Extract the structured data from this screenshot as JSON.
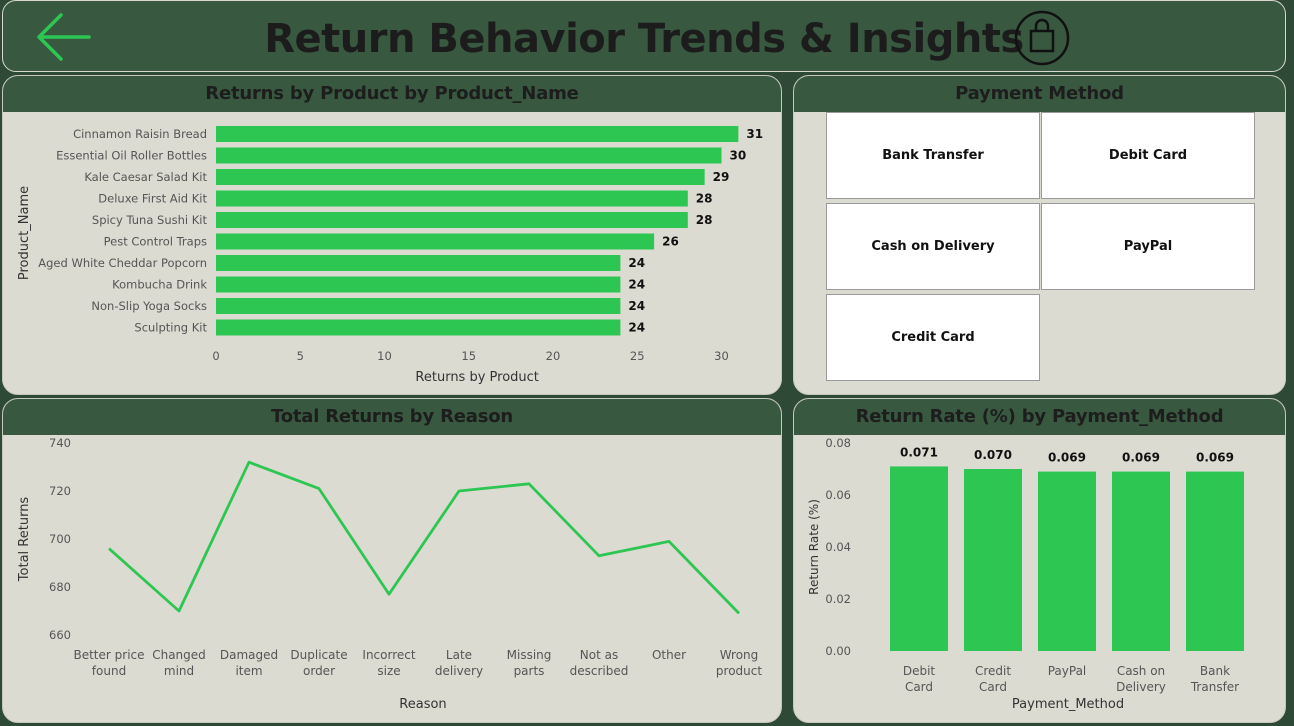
{
  "header": {
    "title": "Return Behavior Trends & Insights"
  },
  "colors": {
    "accent": "#2dc653",
    "header_bg": "#385840",
    "panel_bg": "#dcdbd2"
  },
  "panels": {
    "returns_by_product": {
      "title": "Returns by Product by Product_Name"
    },
    "payment_method": {
      "title": "Payment Method"
    },
    "returns_by_reason": {
      "title": "Total Returns by Reason"
    },
    "return_rate": {
      "title": "Return Rate (%) by Payment_Method"
    }
  },
  "payment_slicer": {
    "options": [
      "Bank Transfer",
      "Debit Card",
      "Cash on Delivery",
      "PayPal",
      "Credit Card"
    ]
  },
  "chart_data": [
    {
      "type": "bar",
      "orientation": "horizontal",
      "title": "Returns by Product by Product_Name",
      "xlabel": "Returns by Product",
      "ylabel": "Product_Name",
      "categories": [
        "Cinnamon Raisin Bread",
        "Essential Oil Roller Bottles",
        "Kale Caesar Salad Kit",
        "Deluxe First Aid Kit",
        "Spicy Tuna Sushi Kit",
        "Pest Control Traps",
        "Aged White Cheddar Popcorn",
        "Kombucha Drink",
        "Non-Slip Yoga Socks",
        "Sculpting Kit"
      ],
      "values": [
        31,
        30,
        29,
        28,
        28,
        26,
        24,
        24,
        24,
        24
      ],
      "xlim": [
        0,
        31
      ],
      "xticks": [
        0,
        5,
        10,
        15,
        20,
        25,
        30
      ],
      "grid": false
    },
    {
      "type": "line",
      "title": "Total Returns by Reason",
      "xlabel": "Reason",
      "ylabel": "Total Returns",
      "categories": [
        "Better price found",
        "Changed mind",
        "Damaged item",
        "Duplicate order",
        "Incorrect size",
        "Late delivery",
        "Missing parts",
        "Not as described",
        "Other",
        "Wrong product"
      ],
      "values": [
        696,
        670,
        732,
        721,
        677,
        720,
        723,
        693,
        699,
        669
      ],
      "ylim": [
        660,
        740
      ],
      "yticks": [
        660,
        680,
        700,
        720,
        740
      ],
      "grid": false
    },
    {
      "type": "bar",
      "orientation": "vertical",
      "title": "Return Rate (%) by Payment_Method",
      "xlabel": "Payment_Method",
      "ylabel": "Return Rate (%)",
      "categories": [
        "Debit Card",
        "Credit Card",
        "PayPal",
        "Cash on Delivery",
        "Bank Transfer"
      ],
      "values": [
        0.071,
        0.07,
        0.069,
        0.069,
        0.069
      ],
      "value_labels": [
        "0.071",
        "0.070",
        "0.069",
        "0.069",
        "0.069"
      ],
      "ylim": [
        0,
        0.08
      ],
      "yticks": [
        "0.00",
        "0.02",
        "0.04",
        "0.06",
        "0.08"
      ],
      "grid": false
    }
  ]
}
